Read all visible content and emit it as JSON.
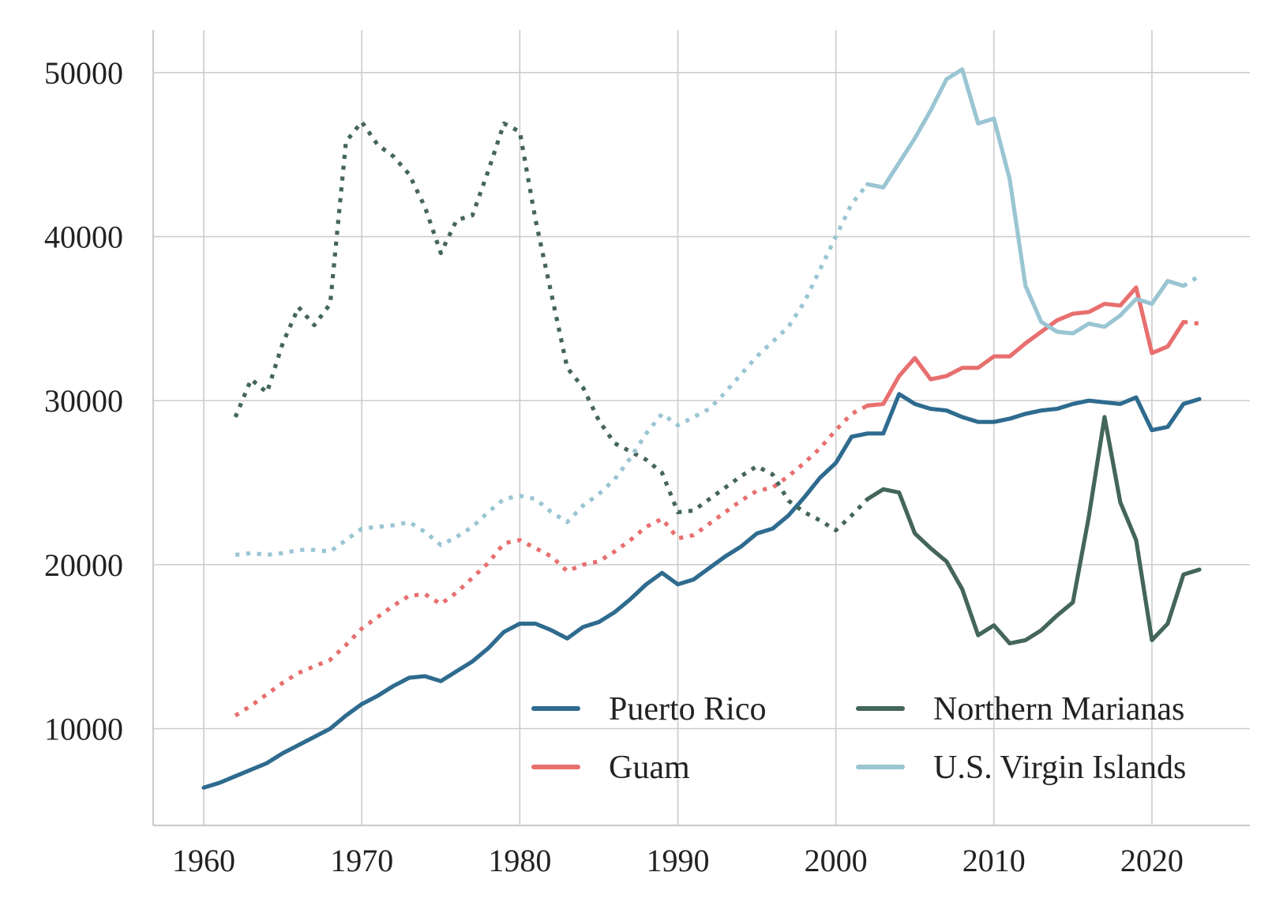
{
  "chart_data": {
    "type": "line",
    "title": "",
    "xlabel": "",
    "ylabel": "",
    "xlim": [
      1956.8,
      2026.2
    ],
    "ylim": [
      4100,
      52600
    ],
    "x_ticks": [
      1960,
      1970,
      1980,
      1990,
      2000,
      2010,
      2020
    ],
    "y_ticks": [
      10000,
      20000,
      30000,
      40000,
      50000
    ],
    "grid": true,
    "legend": {
      "placement": "lower-right",
      "columns": 2,
      "order": [
        "Puerto Rico",
        "Guam",
        "Northern Marianas",
        "U.S. Virgin Islands"
      ]
    },
    "series": [
      {
        "name": "Puerto Rico",
        "color": "#2e6b8f",
        "segments": [
          {
            "style": "solid",
            "x": [
              1960,
              1961,
              1962,
              1963,
              1964,
              1965,
              1966,
              1967,
              1968,
              1969,
              1970,
              1971,
              1972,
              1973,
              1974,
              1975,
              1976,
              1977,
              1978,
              1979,
              1980,
              1981,
              1982,
              1983,
              1984,
              1985,
              1986,
              1987,
              1988,
              1989,
              1990,
              1991,
              1992,
              1993,
              1994,
              1995,
              1996,
              1997,
              1998,
              1999,
              2000,
              2001,
              2002,
              2003,
              2004,
              2005,
              2006,
              2007,
              2008,
              2009,
              2010,
              2011,
              2012,
              2013,
              2014,
              2015,
              2016,
              2017,
              2018,
              2019,
              2020,
              2021,
              2022,
              2023
            ],
            "y": [
              6400,
              6700,
              7100,
              7500,
              7900,
              8500,
              9000,
              9500,
              10000,
              10800,
              11500,
              12000,
              12600,
              13100,
              13200,
              12900,
              13500,
              14100,
              14900,
              15900,
              16400,
              16400,
              16000,
              15500,
              16200,
              16500,
              17100,
              17900,
              18800,
              19500,
              18800,
              19100,
              19800,
              20500,
              21100,
              21900,
              22200,
              23000,
              24100,
              25300,
              26200,
              27800,
              28000,
              28000,
              30400,
              29800,
              29500,
              29400,
              29000,
              28700,
              28700,
              28900,
              29200,
              29400,
              29500,
              29800,
              30000,
              29900,
              29800,
              30200,
              28200,
              28400,
              29800,
              30100
            ]
          }
        ]
      },
      {
        "name": "Guam",
        "color": "#e86f6f",
        "segments": [
          {
            "style": "dotted",
            "x": [
              1962,
              1963,
              1964,
              1965,
              1966,
              1967,
              1968,
              1969,
              1970,
              1971,
              1972,
              1973,
              1974,
              1975,
              1976,
              1977,
              1978,
              1979,
              1980,
              1981,
              1982,
              1983,
              1984,
              1985,
              1986,
              1987,
              1988,
              1989,
              1990,
              1991,
              1992,
              1993,
              1994,
              1995,
              1996,
              1997,
              1998,
              1999,
              2000,
              2001,
              2002
            ],
            "y": [
              10800,
              11400,
              12100,
              12800,
              13400,
              13800,
              14200,
              15100,
              16100,
              16800,
              17500,
              18100,
              18200,
              17600,
              18300,
              19200,
              20100,
              21300,
              21500,
              21000,
              20500,
              19600,
              20000,
              20200,
              20800,
              21500,
              22300,
              22800,
              21600,
              21800,
              22500,
              23200,
              23900,
              24500,
              24700,
              25400,
              26200,
              27100,
              28200,
              29200,
              29700
            ]
          },
          {
            "style": "solid",
            "x": [
              2002,
              2003,
              2004,
              2005,
              2006,
              2007,
              2008,
              2009,
              2010,
              2011,
              2012,
              2013,
              2014,
              2015,
              2016,
              2017,
              2018,
              2019,
              2020,
              2021,
              2022
            ],
            "y": [
              29700,
              29800,
              31500,
              32600,
              31300,
              31500,
              32000,
              32000,
              32700,
              32700,
              33500,
              34200,
              34900,
              35300,
              35400,
              35900,
              35800,
              36900,
              32900,
              33300,
              34800
            ]
          },
          {
            "style": "dotted",
            "x": [
              2022,
              2023
            ],
            "y": [
              34800,
              34700
            ]
          }
        ]
      },
      {
        "name": "Northern Marianas",
        "color": "#44665a",
        "segments": [
          {
            "style": "dotted",
            "x": [
              1962,
              1963,
              1964,
              1965,
              1966,
              1967,
              1968,
              1969,
              1970,
              1971,
              1972,
              1973,
              1974,
              1975,
              1976,
              1977,
              1978,
              1979,
              1980,
              1981,
              1982,
              1983,
              1984,
              1985,
              1986,
              1987,
              1988,
              1989,
              1990,
              1991,
              1992,
              1993,
              1994,
              1995,
              1996,
              1997,
              1998,
              1999,
              2000,
              2001,
              2002
            ],
            "y": [
              29000,
              31300,
              30500,
              33500,
              35700,
              34600,
              35900,
              45800,
              47000,
              45600,
              44900,
              43800,
              41800,
              39000,
              41000,
              41300,
              44000,
              46900,
              46400,
              41000,
              36500,
              32000,
              30800,
              28800,
              27400,
              26900,
              26400,
              25600,
              23200,
              23300,
              24000,
              24700,
              25400,
              26000,
              25500,
              23900,
              23200,
              22700,
              22100,
              23000,
              24000
            ]
          },
          {
            "style": "solid",
            "x": [
              2002,
              2003,
              2004,
              2005,
              2006,
              2007,
              2008,
              2009,
              2010,
              2011,
              2012,
              2013,
              2014,
              2015,
              2016,
              2017,
              2018,
              2019,
              2020,
              2021,
              2022,
              2023
            ],
            "y": [
              24000,
              24600,
              24400,
              21900,
              21000,
              20200,
              18500,
              15700,
              16300,
              15200,
              15400,
              16000,
              16900,
              17700,
              22900,
              29000,
              23800,
              21500,
              15400,
              16400,
              19400,
              19700
            ]
          }
        ]
      },
      {
        "name": "U.S. Virgin Islands",
        "color": "#9ac5d3",
        "segments": [
          {
            "style": "dotted",
            "x": [
              1962,
              1963,
              1964,
              1965,
              1966,
              1967,
              1968,
              1969,
              1970,
              1971,
              1972,
              1973,
              1974,
              1975,
              1976,
              1977,
              1978,
              1979,
              1980,
              1981,
              1982,
              1983,
              1984,
              1985,
              1986,
              1987,
              1988,
              1989,
              1990,
              1991,
              1992,
              1993,
              1994,
              1995,
              1996,
              1997,
              1998,
              1999,
              2000,
              2001,
              2002
            ],
            "y": [
              20600,
              20700,
              20600,
              20700,
              20900,
              20900,
              20800,
              21500,
              22200,
              22300,
              22400,
              22600,
              22000,
              21200,
              21700,
              22300,
              23200,
              24000,
              24200,
              24000,
              23200,
              22600,
              23600,
              24300,
              25200,
              26500,
              28000,
              29200,
              28500,
              29000,
              29500,
              30500,
              31600,
              32700,
              33600,
              34500,
              36000,
              38000,
              40000,
              42000,
              43200
            ]
          },
          {
            "style": "solid",
            "x": [
              2002,
              2003,
              2004,
              2005,
              2006,
              2007,
              2008,
              2009,
              2010,
              2011,
              2012,
              2013,
              2014,
              2015,
              2016,
              2017,
              2018,
              2019,
              2020,
              2021,
              2022
            ],
            "y": [
              43200,
              43000,
              44500,
              46000,
              47700,
              49600,
              50200,
              46900,
              47200,
              43500,
              37000,
              34800,
              34200,
              34100,
              34700,
              34500,
              35200,
              36200,
              35900,
              37300,
              37000
            ]
          },
          {
            "style": "dotted",
            "x": [
              2022,
              2023
            ],
            "y": [
              37000,
              37600
            ]
          }
        ]
      }
    ]
  }
}
